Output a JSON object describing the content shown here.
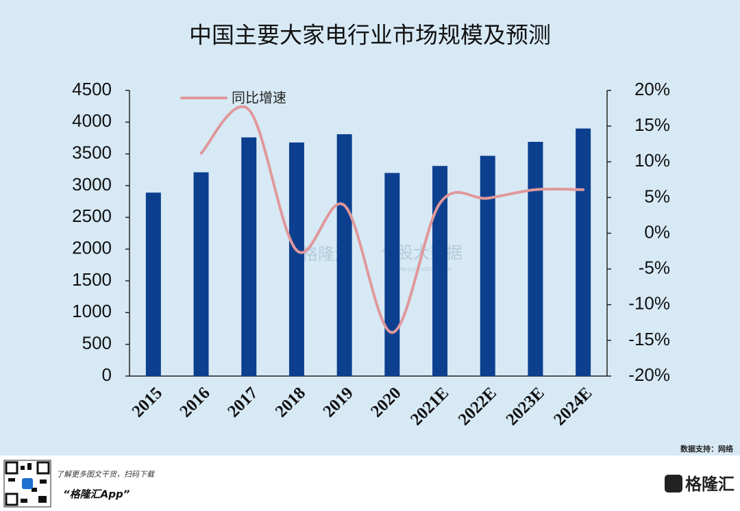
{
  "chart_data": {
    "type": "bar+line",
    "title": "中国主要大家电行业市场规模及预测",
    "categories": [
      "2015",
      "2016",
      "2017",
      "2018",
      "2019",
      "2020",
      "2021E",
      "2022E",
      "2023E",
      "2024E"
    ],
    "series": [
      {
        "type": "bar",
        "color": "#0d3f8f",
        "values": [
          2890,
          3210,
          3760,
          3680,
          3810,
          3200,
          3310,
          3470,
          3690,
          3900
        ]
      },
      {
        "type": "line",
        "name": "同比增速",
        "color": "#e0989a",
        "axis": "y2",
        "values": [
          null,
          11.2,
          17.3,
          -2.4,
          3.9,
          -13.9,
          4.2,
          4.9,
          6.1,
          6.1
        ]
      }
    ],
    "ylim": [
      0,
      4500
    ],
    "yticks": [
      0,
      500,
      1000,
      1500,
      2000,
      2500,
      3000,
      3500,
      4000,
      4500
    ],
    "y2lim": [
      -20,
      20
    ],
    "y2ticks": [
      {
        "value": -20,
        "label": "-20%"
      },
      {
        "value": -15,
        "label": "-15%"
      },
      {
        "value": -10,
        "label": "-10%"
      },
      {
        "value": -5,
        "label": "-5%"
      },
      {
        "value": 0,
        "label": "0%"
      },
      {
        "value": 5,
        "label": "5%"
      },
      {
        "value": 10,
        "label": "10%"
      },
      {
        "value": 15,
        "label": "15%"
      },
      {
        "value": 20,
        "label": "20%"
      }
    ],
    "source": "数据支持：网络",
    "watermark": [
      "格隆汇",
      "个股大数据",
      "www.gogudata.com"
    ]
  },
  "footer": {
    "promo": "了解更多图文干货，扫码下载",
    "app": "“格隆汇App”",
    "logo": "格隆汇"
  }
}
